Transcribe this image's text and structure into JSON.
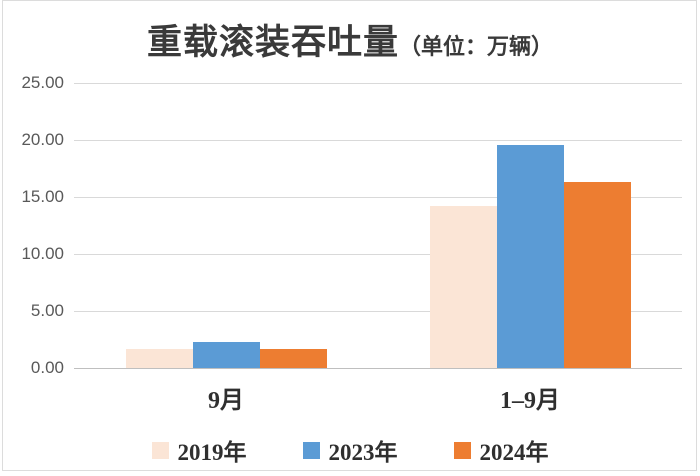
{
  "title": {
    "main": "重载滚装吞吐量",
    "unit": "（单位：万辆）"
  },
  "chart_data": {
    "type": "bar",
    "title": "重载滚装吞吐量（单位：万辆）",
    "categories": [
      "9月",
      "1–9月"
    ],
    "series": [
      {
        "name": "2019年",
        "color": "#FBE5D6",
        "values": [
          1.7,
          14.2
        ]
      },
      {
        "name": "2023年",
        "color": "#5B9BD5",
        "values": [
          2.3,
          19.6
        ]
      },
      {
        "name": "2024年",
        "color": "#ED7D31",
        "values": [
          1.7,
          16.3
        ]
      }
    ],
    "xlabel": "",
    "ylabel": "",
    "ylim": [
      0,
      25
    ],
    "yticks": [
      "0.00",
      "5.00",
      "10.00",
      "15.00",
      "20.00",
      "25.00"
    ],
    "grid": true,
    "legend_position": "bottom"
  },
  "colors": {
    "gridline": "#d9d9d9",
    "baseline": "#bfbfbf",
    "frame_border": "#dcdcdc",
    "y_tick_text": "#595959",
    "x_tick_text": "#2f2f2f",
    "title_text": "#3a3a3a",
    "background": "#ffffff"
  }
}
